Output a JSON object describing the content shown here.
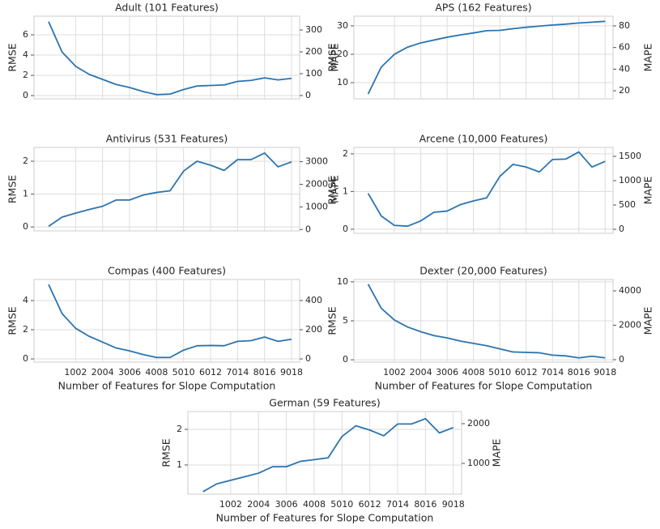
{
  "chart_data": [
    {
      "type": "line",
      "title": "Adult (101 Features)",
      "ylabel": "RMSE",
      "y2label": "MAPE",
      "color": "#2b74b0",
      "grid": true,
      "show_xtick_labels": false,
      "x": [
        0,
        501,
        1002,
        1503,
        2004,
        2505,
        3006,
        3507,
        4008,
        4509,
        5010,
        5511,
        6012,
        6513,
        7014,
        7515,
        8016,
        8517,
        9018
      ],
      "values": [
        7.3,
        4.3,
        2.9,
        2.1,
        1.6,
        1.1,
        0.8,
        0.4,
        0.1,
        0.15,
        0.6,
        0.95,
        1.0,
        1.05,
        1.4,
        1.5,
        1.75,
        1.55,
        1.7
      ],
      "xlim": [
        -541,
        9318
      ],
      "xticks": [
        1002,
        2004,
        3006,
        4008,
        5010,
        6012,
        7014,
        8016,
        9018
      ],
      "ylim": [
        -0.32,
        7.84
      ],
      "yticks": [
        0,
        2,
        4,
        6
      ],
      "y2lim": [
        -15,
        363
      ],
      "y2ticks": [
        0,
        100,
        200,
        300
      ]
    },
    {
      "type": "line",
      "title": "APS (162 Features)",
      "ylabel": "RMSE",
      "y2label": "MAPE",
      "color": "#2b74b0",
      "grid": true,
      "show_xtick_labels": false,
      "x": [
        0,
        501,
        1002,
        1503,
        2004,
        2505,
        3006,
        3507,
        4008,
        4509,
        5010,
        5511,
        6012,
        6513,
        7014,
        7515,
        8016,
        8517,
        9018
      ],
      "values": [
        6,
        15.5,
        20,
        22.5,
        24,
        25,
        26,
        26.8,
        27.5,
        28.3,
        28.4,
        29,
        29.5,
        29.9,
        30.3,
        30.6,
        31,
        31.3,
        31.6
      ],
      "xlim": [
        -541,
        9318
      ],
      "xticks": [
        1002,
        2004,
        3006,
        4008,
        5010,
        6012,
        7014,
        8016,
        9018
      ],
      "ylim": [
        4.3,
        33.4
      ],
      "yticks": [
        10,
        20,
        30
      ],
      "y2lim": [
        12.5,
        89
      ],
      "y2ticks": [
        20,
        40,
        60,
        80
      ]
    },
    {
      "type": "line",
      "title": "Antivirus (531 Features)",
      "ylabel": "RMSE",
      "y2label": "MAPE",
      "color": "#2b74b0",
      "grid": true,
      "show_xtick_labels": false,
      "x": [
        0,
        501,
        1002,
        1503,
        2004,
        2505,
        3006,
        3507,
        4008,
        4509,
        5010,
        5511,
        6012,
        6513,
        7014,
        7515,
        8016,
        8517,
        9018
      ],
      "values": [
        0.02,
        0.3,
        0.42,
        0.53,
        0.63,
        0.82,
        0.82,
        0.97,
        1.05,
        1.1,
        1.7,
        2.0,
        1.88,
        1.72,
        2.05,
        2.05,
        2.25,
        1.83,
        1.98
      ],
      "xlim": [
        -541,
        9318
      ],
      "xticks": [
        1002,
        2004,
        3006,
        4008,
        5010,
        6012,
        7014,
        8016,
        9018
      ],
      "ylim": [
        -0.12,
        2.42
      ],
      "yticks": [
        0,
        1,
        2
      ],
      "y2lim": [
        -60,
        3630
      ],
      "y2ticks": [
        0,
        1000,
        2000,
        3000
      ]
    },
    {
      "type": "line",
      "title": "Arcene (10,000 Features)",
      "ylabel": "RMSE",
      "y2label": "MAPE",
      "color": "#2b74b0",
      "grid": true,
      "show_xtick_labels": false,
      "x": [
        0,
        501,
        1002,
        1503,
        2004,
        2505,
        3006,
        3507,
        4008,
        4509,
        5010,
        5511,
        6012,
        6513,
        7014,
        7515,
        8016,
        8517,
        9018
      ],
      "values": [
        0.95,
        0.35,
        0.1,
        0.08,
        0.22,
        0.45,
        0.48,
        0.65,
        0.75,
        0.83,
        1.4,
        1.72,
        1.65,
        1.52,
        1.85,
        1.86,
        2.05,
        1.65,
        1.8
      ],
      "xlim": [
        -541,
        9318
      ],
      "xticks": [
        1002,
        2004,
        3006,
        4008,
        5010,
        6012,
        7014,
        8016,
        9018
      ],
      "ylim": [
        -0.11,
        2.17
      ],
      "yticks": [
        0,
        1,
        2
      ],
      "y2lim": [
        -83,
        1683
      ],
      "y2ticks": [
        0,
        500,
        1000,
        1500
      ]
    },
    {
      "type": "line",
      "title": "Compas (400 Features)",
      "ylabel": "RMSE",
      "xlabel": "Number of Features for Slope Computation",
      "color": "#2b74b0",
      "grid": true,
      "show_xtick_labels": true,
      "x": [
        0,
        501,
        1002,
        1503,
        2004,
        2505,
        3006,
        3507,
        4008,
        4509,
        5010,
        5511,
        6012,
        6513,
        7014,
        7515,
        8016,
        8517,
        9018
      ],
      "values": [
        5.1,
        3.1,
        2.1,
        1.55,
        1.15,
        0.75,
        0.55,
        0.3,
        0.1,
        0.1,
        0.6,
        0.9,
        0.92,
        0.9,
        1.2,
        1.25,
        1.5,
        1.2,
        1.35
      ],
      "xlim": [
        -541,
        9318
      ],
      "xticks": [
        1002,
        2004,
        3006,
        4008,
        5010,
        6012,
        7014,
        8016,
        9018
      ],
      "ylim": [
        -0.22,
        5.44
      ],
      "yticks": [
        0,
        2,
        4
      ],
      "y2lim": [
        -22,
        544
      ],
      "y2ticks": [
        0,
        200,
        400
      ]
    },
    {
      "type": "line",
      "title": "Dexter (20,000 Features)",
      "ylabel": "RMSE",
      "y2label": "MAPE",
      "xlabel": "Number of Features for Slope Computation",
      "color": "#2b74b0",
      "grid": true,
      "show_xtick_labels": true,
      "x": [
        0,
        501,
        1002,
        1503,
        2004,
        2505,
        3006,
        3507,
        4008,
        4509,
        5010,
        5511,
        6012,
        6513,
        7014,
        7515,
        8016,
        8517,
        9018
      ],
      "values": [
        9.7,
        6.6,
        5.1,
        4.2,
        3.6,
        3.1,
        2.8,
        2.4,
        2.1,
        1.8,
        1.4,
        1.0,
        0.95,
        0.9,
        0.6,
        0.5,
        0.25,
        0.45,
        0.25
      ],
      "xlim": [
        -541,
        9318
      ],
      "xticks": [
        1002,
        2004,
        3006,
        4008,
        5010,
        6012,
        7014,
        8016,
        9018
      ],
      "ylim": [
        -0.3,
        10.3
      ],
      "yticks": [
        0,
        5,
        10
      ],
      "y2lim": [
        -141,
        4659
      ],
      "y2ticks": [
        0,
        2000,
        4000
      ]
    },
    {
      "type": "line",
      "title": "German (59 Features)",
      "ylabel": "RMSE",
      "y2label": "MAPE",
      "xlabel": "Number of Features for Slope Computation",
      "color": "#2b74b0",
      "grid": true,
      "show_xtick_labels": true,
      "x": [
        0,
        501,
        1002,
        1503,
        2004,
        2505,
        3006,
        3507,
        4008,
        4509,
        5010,
        5511,
        6012,
        6513,
        7014,
        7515,
        8016,
        8517,
        9018
      ],
      "values": [
        0.25,
        0.47,
        0.57,
        0.67,
        0.77,
        0.95,
        0.95,
        1.1,
        1.15,
        1.2,
        1.8,
        2.1,
        1.98,
        1.82,
        2.15,
        2.15,
        2.3,
        1.9,
        2.05
      ],
      "xlim": [
        -541,
        9318
      ],
      "xticks": [
        1002,
        2004,
        3006,
        4008,
        5010,
        6012,
        7014,
        8016,
        9018
      ],
      "ylim": [
        0.18,
        2.5
      ],
      "yticks": [
        1,
        2
      ],
      "y2lim": [
        224,
        2306
      ],
      "y2ticks": [
        1000,
        2000
      ]
    }
  ]
}
